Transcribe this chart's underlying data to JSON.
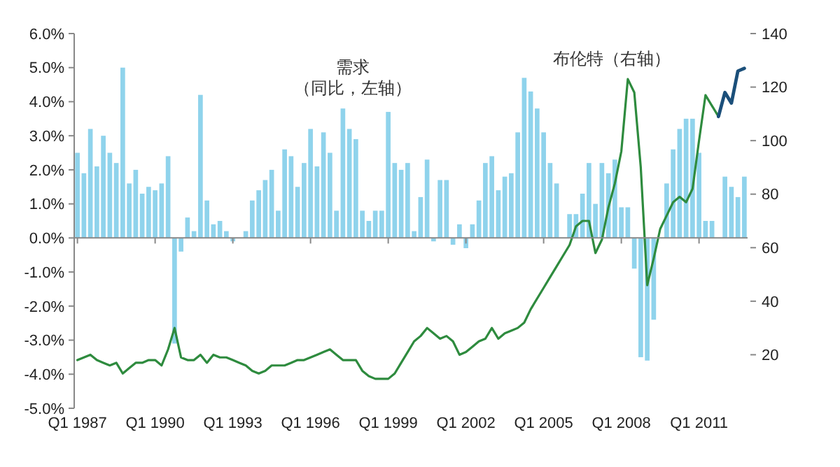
{
  "chart_data": {
    "type": "bar",
    "categories": [
      "Q1 1987",
      null,
      null,
      null,
      null,
      null,
      null,
      null,
      null,
      null,
      null,
      null,
      "Q1 1990",
      null,
      null,
      null,
      null,
      null,
      null,
      null,
      null,
      null,
      null,
      null,
      "Q1 1993",
      null,
      null,
      null,
      null,
      null,
      null,
      null,
      null,
      null,
      null,
      null,
      "Q1 1996",
      null,
      null,
      null,
      null,
      null,
      null,
      null,
      null,
      null,
      null,
      null,
      "Q1 1999",
      null,
      null,
      null,
      null,
      null,
      null,
      null,
      null,
      null,
      null,
      null,
      "Q1 2002",
      null,
      null,
      null,
      null,
      null,
      null,
      null,
      null,
      null,
      null,
      null,
      "Q1 2005",
      null,
      null,
      null,
      null,
      null,
      null,
      null,
      null,
      null,
      null,
      null,
      "Q1 2008",
      null,
      null,
      null,
      null,
      null,
      null,
      null,
      null,
      null,
      null,
      null,
      "Q1 2011",
      null,
      null,
      null,
      null,
      null,
      null,
      null
    ],
    "ylim": [
      -5,
      6
    ],
    "yticks": [
      {
        "value": -5,
        "label": "-5.0%"
      },
      {
        "value": -4,
        "label": "-4.0%"
      },
      {
        "value": -3,
        "label": "-3.0%"
      },
      {
        "value": -2,
        "label": "-2.0%"
      },
      {
        "value": -1,
        "label": "-1.0%"
      },
      {
        "value": 0,
        "label": "0.0%"
      },
      {
        "value": 1,
        "label": "1.0%"
      },
      {
        "value": 2,
        "label": "2.0%"
      },
      {
        "value": 3,
        "label": "3.0%"
      },
      {
        "value": 4,
        "label": "4.0%"
      },
      {
        "value": 5,
        "label": "5.0%"
      },
      {
        "value": 6,
        "label": "6.0%"
      }
    ],
    "y2lim": [
      0,
      140
    ],
    "y2ticks": [
      20,
      40,
      60,
      80,
      100,
      120,
      140
    ],
    "series": [
      {
        "name": "需求（同比，左轴）",
        "color": "#8fd3ec",
        "values": [
          2.5,
          1.9,
          3.2,
          2.1,
          3.0,
          2.5,
          2.2,
          5.0,
          1.6,
          2.0,
          1.3,
          1.5,
          1.4,
          1.6,
          2.4,
          -3.1,
          -0.4,
          0.6,
          0.2,
          4.2,
          1.1,
          0.4,
          0.5,
          0.2,
          -0.1,
          null,
          0.2,
          1.1,
          1.4,
          1.7,
          2.0,
          0.8,
          2.6,
          2.4,
          1.5,
          2.2,
          3.2,
          2.1,
          3.1,
          2.5,
          0.8,
          3.8,
          3.2,
          2.9,
          0.8,
          0.5,
          0.8,
          0.8,
          3.7,
          2.2,
          2.0,
          2.2,
          0.2,
          1.2,
          2.3,
          -0.1,
          1.7,
          1.7,
          -0.2,
          0.4,
          -0.3,
          0.4,
          1.1,
          2.2,
          2.4,
          1.4,
          1.8,
          1.9,
          3.1,
          4.7,
          4.3,
          3.8,
          3.1,
          2.2,
          1.6,
          null,
          0.7,
          0.7,
          1.3,
          2.2,
          1.0,
          2.2,
          1.9,
          2.3,
          0.9,
          0.9,
          -0.9,
          -3.5,
          -3.6,
          -2.4,
          null,
          1.6,
          2.6,
          3.2,
          3.5,
          3.5,
          2.5,
          0.5,
          0.5,
          null,
          1.8,
          1.5,
          1.2,
          1.8
        ]
      },
      {
        "type": "line",
        "axis": "y2",
        "name": "布伦特（右轴）",
        "color": "#2e8b3e",
        "values": [
          18,
          19,
          20,
          18,
          17,
          16,
          17,
          13,
          15,
          17,
          17,
          18,
          18,
          16,
          22,
          30,
          19,
          18,
          18,
          20,
          17,
          20,
          19,
          19,
          18,
          17,
          16,
          14,
          13,
          14,
          16,
          16,
          16,
          17,
          18,
          18,
          19,
          20,
          21,
          22,
          20,
          18,
          18,
          18,
          14,
          12,
          11,
          11,
          11,
          13,
          17,
          21,
          25,
          27,
          30,
          28,
          26,
          27,
          25,
          20,
          21,
          23,
          25,
          26,
          30,
          26,
          28,
          29,
          30,
          32,
          37,
          41,
          45,
          49,
          53,
          57,
          61,
          68,
          70,
          70,
          58,
          63,
          75,
          84,
          96,
          123,
          118,
          90,
          46,
          56,
          67,
          72,
          77,
          79,
          77,
          82,
          100,
          117,
          113,
          109,
          null,
          null,
          null,
          null
        ]
      },
      {
        "type": "line",
        "axis": "y2",
        "color": "#1b4f7a",
        "values": [
          null,
          null,
          null,
          null,
          null,
          null,
          null,
          null,
          null,
          null,
          null,
          null,
          null,
          null,
          null,
          null,
          null,
          null,
          null,
          null,
          null,
          null,
          null,
          null,
          null,
          null,
          null,
          null,
          null,
          null,
          null,
          null,
          null,
          null,
          null,
          null,
          null,
          null,
          null,
          null,
          null,
          null,
          null,
          null,
          null,
          null,
          null,
          null,
          null,
          null,
          null,
          null,
          null,
          null,
          null,
          null,
          null,
          null,
          null,
          null,
          null,
          null,
          null,
          null,
          null,
          null,
          null,
          null,
          null,
          null,
          null,
          null,
          null,
          null,
          null,
          null,
          null,
          null,
          null,
          null,
          null,
          null,
          null,
          null,
          null,
          null,
          null,
          null,
          null,
          null,
          null,
          null,
          null,
          null,
          null,
          null,
          null,
          null,
          null,
          109,
          118,
          114,
          126,
          127
        ]
      }
    ]
  }
}
